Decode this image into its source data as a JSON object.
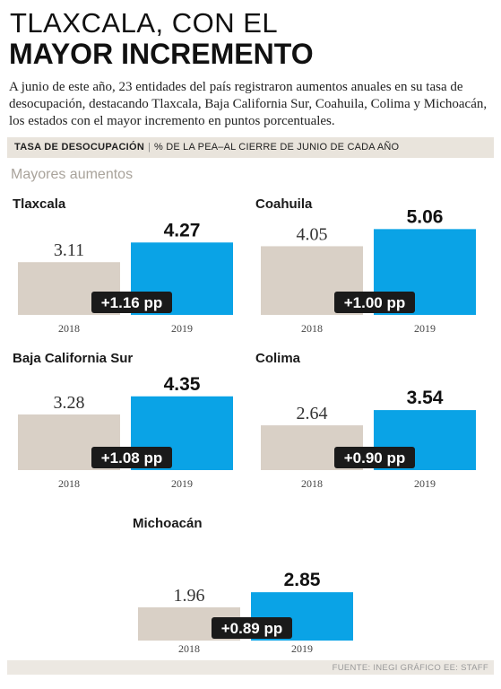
{
  "title": {
    "line1": "TLAXCALA, CON EL",
    "line2": "MAYOR INCREMENTO"
  },
  "intro": "A junio de este año, 23 entidades del país registraron aumentos anuales en su tasa de desocupación, destacando Tlaxcala, Baja California Sur, Coahuila, Colima y Michoacán, los estados con el mayor incremento en puntos porcentuales.",
  "header": {
    "title": "TASA DE DESOCUPACIÓN",
    "subtitle": "% DE LA PEA–AL CIERRE DE JUNIO DE CADA AÑO"
  },
  "section_label": "Mayores aumentos",
  "footer": "FUENTE: INEGI  GRÁFICO EE: STAFF",
  "colors": {
    "bar_2018": "#d9d0c6",
    "bar_2019": "#0aa3e6",
    "diff_box": "#1a1a1a",
    "header_bg": "#e9e4dc"
  },
  "chart_data": [
    {
      "type": "bar",
      "title": "Tlaxcala",
      "categories": [
        "2018",
        "2019"
      ],
      "values": [
        3.11,
        4.27
      ],
      "value_labels": [
        "3.11",
        "4.27"
      ],
      "difference_label": "+1.16 pp"
    },
    {
      "type": "bar",
      "title": "Coahuila",
      "categories": [
        "2018",
        "2019"
      ],
      "values": [
        4.05,
        5.06
      ],
      "value_labels": [
        "4.05",
        "5.06"
      ],
      "difference_label": "+1.00 pp"
    },
    {
      "type": "bar",
      "title": "Baja California Sur",
      "categories": [
        "2018",
        "2019"
      ],
      "values": [
        3.28,
        4.35
      ],
      "value_labels": [
        "3.28",
        "4.35"
      ],
      "difference_label": "+1.08 pp"
    },
    {
      "type": "bar",
      "title": "Colima",
      "categories": [
        "2018",
        "2019"
      ],
      "values": [
        2.64,
        3.54
      ],
      "value_labels": [
        "2.64",
        "3.54"
      ],
      "difference_label": "+0.90 pp"
    },
    {
      "type": "bar",
      "title": "Michoacán",
      "categories": [
        "2018",
        "2019"
      ],
      "values": [
        1.96,
        2.85
      ],
      "value_labels": [
        "1.96",
        "2.85"
      ],
      "difference_label": "+0.89 pp"
    }
  ]
}
